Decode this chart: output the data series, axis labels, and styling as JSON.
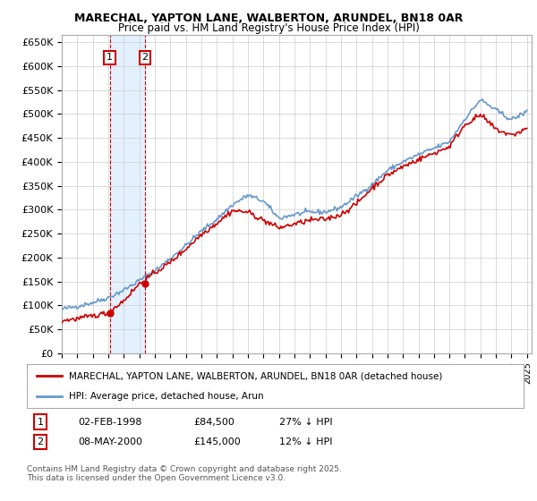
{
  "title1": "MARECHAL, YAPTON LANE, WALBERTON, ARUNDEL, BN18 0AR",
  "title2": "Price paid vs. HM Land Registry's House Price Index (HPI)",
  "ylabel_ticks": [
    "£0",
    "£50K",
    "£100K",
    "£150K",
    "£200K",
    "£250K",
    "£300K",
    "£350K",
    "£400K",
    "£450K",
    "£500K",
    "£550K",
    "£600K",
    "£650K"
  ],
  "ytick_values": [
    0,
    50000,
    100000,
    150000,
    200000,
    250000,
    300000,
    350000,
    400000,
    450000,
    500000,
    550000,
    600000,
    650000
  ],
  "red_color": "#cc0000",
  "blue_color": "#6699cc",
  "marker1_year": 1998.09,
  "marker1_price": 84500,
  "marker2_year": 2000.36,
  "marker2_price": 145000,
  "legend_line1": "MARECHAL, YAPTON LANE, WALBERTON, ARUNDEL, BN18 0AR (detached house)",
  "legend_line2": "HPI: Average price, detached house, Arun",
  "footnote": "Contains HM Land Registry data © Crown copyright and database right 2025.\nThis data is licensed under the Open Government Licence v3.0.",
  "bg_highlight_color": "#ddeeff",
  "grid_color": "#cccccc",
  "hpi_xp": [
    1995,
    1996,
    1997,
    1998,
    1999,
    2000,
    2001,
    2002,
    2003,
    2004,
    2005,
    2006,
    2007,
    2008,
    2009,
    2010,
    2011,
    2012,
    2013,
    2014,
    2015,
    2016,
    2017,
    2018,
    2019,
    2020,
    2021,
    2022,
    2023,
    2024,
    2025
  ],
  "hpi_fp": [
    92000,
    98000,
    106000,
    116000,
    132000,
    152000,
    172000,
    198000,
    225000,
    255000,
    280000,
    310000,
    330000,
    318000,
    282000,
    290000,
    295000,
    295000,
    305000,
    328000,
    352000,
    382000,
    400000,
    415000,
    428000,
    442000,
    490000,
    530000,
    508000,
    488000,
    505000
  ],
  "red_xp": [
    1995,
    1996,
    1997,
    1998,
    1999,
    2000,
    2001,
    2002,
    2003,
    2004,
    2005,
    2006,
    2007,
    2008,
    2009,
    2010,
    2011,
    2012,
    2013,
    2014,
    2015,
    2016,
    2017,
    2018,
    2019,
    2020,
    2021,
    2022,
    2023,
    2024,
    2025
  ],
  "red_fp": [
    68000,
    72000,
    78000,
    84500,
    110000,
    145000,
    168000,
    190000,
    218000,
    248000,
    272000,
    298000,
    295000,
    278000,
    262000,
    270000,
    278000,
    280000,
    290000,
    312000,
    345000,
    372000,
    390000,
    405000,
    418000,
    432000,
    478000,
    498000,
    468000,
    455000,
    470000
  ]
}
